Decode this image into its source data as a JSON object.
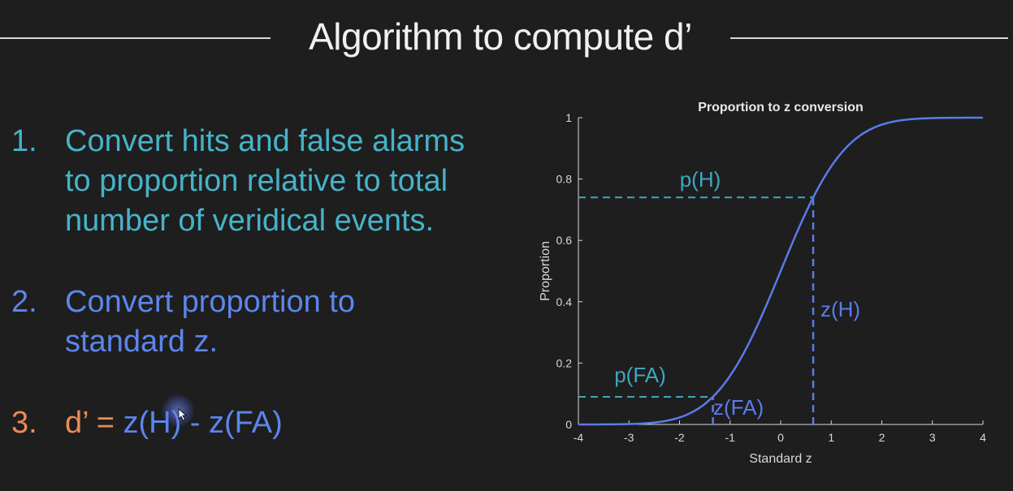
{
  "slide": {
    "title": "Algorithm to compute d’",
    "steps": [
      {
        "number": "1.",
        "lines": [
          "Convert hits and false alarms",
          "to proportion relative to total",
          "number of veridical events."
        ],
        "color": "#46b3c8"
      },
      {
        "number": "2.",
        "lines": [
          "Convert proportion to",
          "standard z."
        ],
        "color": "#5b86ec"
      },
      {
        "number": "3.",
        "prefix": "d’ = ",
        "equation": "z(H) - z(FA)",
        "color": "#ef8a55"
      }
    ]
  },
  "chart_data": {
    "type": "line",
    "title": "Proportion to z conversion",
    "xlabel": "Standard z",
    "ylabel": "Proportion",
    "xlim": [
      -4,
      4
    ],
    "ylim": [
      0,
      1
    ],
    "xticks": [
      "-4",
      "-3",
      "-2",
      "-1",
      "0",
      "1",
      "2",
      "3",
      "4"
    ],
    "yticks": [
      "0",
      "0.2",
      "0.4",
      "0.6",
      "0.8",
      "1"
    ],
    "series": [
      {
        "function": "normal_cdf",
        "color": "#5b7bea",
        "x": [
          -4,
          -3,
          -2.5,
          -2,
          -1.5,
          -1,
          -0.5,
          0,
          0.5,
          1,
          1.5,
          2,
          2.5,
          3,
          4
        ],
        "y": [
          0,
          0.0013,
          0.0062,
          0.0228,
          0.0668,
          0.1587,
          0.3085,
          0.5,
          0.6915,
          0.8413,
          0.9332,
          0.9772,
          0.9938,
          0.9987,
          1
        ]
      }
    ],
    "annotations": [
      {
        "label": "p(H)",
        "type": "horizontal",
        "y": 0.74,
        "x_to": 0.643,
        "color": "#3fa7bf"
      },
      {
        "label": "z(H)",
        "type": "vertical",
        "x": 0.643,
        "y_to": 0.74,
        "color": "#5b7bea"
      },
      {
        "label": "p(FA)",
        "type": "horizontal",
        "y": 0.09,
        "x_to": -1.34,
        "color": "#3fa7bf"
      },
      {
        "label": "z(FA)",
        "type": "vertical",
        "x": -1.34,
        "y_to": 0.09,
        "color": "#5b7bea"
      }
    ],
    "grid": false,
    "legend": "none"
  }
}
